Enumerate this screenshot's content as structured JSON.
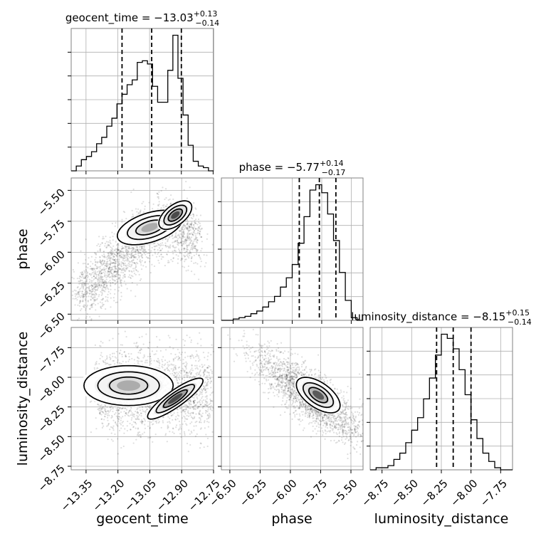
{
  "chart_data": [
    {
      "type": "histogram",
      "panel": "geocent_time marginal",
      "title": "geocent_time = −13.03",
      "title_sup": "+0.13",
      "title_sub": "−0.14",
      "quantiles": [
        -13.18,
        -13.04,
        -12.9
      ],
      "bin_edges": [
        -13.42,
        -13.396,
        -13.372,
        -13.348,
        -13.324,
        -13.3,
        -13.276,
        -13.252,
        -13.228,
        -13.204,
        -13.18,
        -13.156,
        -13.132,
        -13.108,
        -13.084,
        -13.06,
        -13.036,
        -13.012,
        -12.988,
        -12.964,
        -12.94,
        -12.916,
        -12.892,
        -12.868,
        -12.844,
        -12.82,
        -12.796,
        -12.772,
        -12.748
      ],
      "counts": [
        0,
        3,
        7,
        9,
        12,
        17,
        21,
        28,
        33,
        42,
        48,
        54,
        57,
        68,
        69,
        67,
        53,
        43,
        43,
        63,
        85,
        58,
        35,
        16,
        6,
        3,
        2,
        0
      ]
    },
    {
      "type": "histogram",
      "panel": "phase marginal",
      "title": "phase = −5.77",
      "title_sup": "+0.14",
      "title_sub": "−0.17",
      "quantiles": [
        -5.94,
        -5.77,
        -5.63
      ],
      "bin_edges": [
        -6.6,
        -6.55,
        -6.5,
        -6.45,
        -6.4,
        -6.35,
        -6.3,
        -6.25,
        -6.2,
        -6.15,
        -6.1,
        -6.05,
        -6.0,
        -5.95,
        -5.9,
        -5.85,
        -5.8,
        -5.75,
        -5.7,
        -5.65,
        -5.6,
        -5.55,
        -5.5,
        -5.45,
        -5.4
      ],
      "counts": [
        0,
        0,
        1,
        2,
        3,
        5,
        7,
        10,
        14,
        18,
        25,
        32,
        42,
        58,
        78,
        98,
        102,
        96,
        80,
        60,
        36,
        15,
        2,
        0
      ]
    },
    {
      "type": "histogram",
      "panel": "luminosity_distance marginal",
      "title": "luminosity_distance = −8.15",
      "title_sup": "+0.15",
      "title_sub": "−0.14",
      "quantiles": [
        -8.29,
        -8.15,
        -8.0
      ],
      "bin_edges": [
        -8.85,
        -8.8,
        -8.75,
        -8.7,
        -8.65,
        -8.6,
        -8.55,
        -8.5,
        -8.45,
        -8.4,
        -8.35,
        -8.3,
        -8.25,
        -8.2,
        -8.15,
        -8.1,
        -8.05,
        -8.0,
        -7.95,
        -7.9,
        -7.85,
        -7.8,
        -7.75,
        -7.7,
        -7.65
      ],
      "counts": [
        0,
        1,
        1,
        2,
        5,
        8,
        13,
        19,
        25,
        34,
        44,
        55,
        65,
        63,
        58,
        48,
        36,
        24,
        15,
        8,
        4,
        1,
        0,
        0
      ]
    },
    {
      "type": "contour",
      "panel": "geocent_time vs phase",
      "xlabel": "geocent_time",
      "ylabel": "phase",
      "xlim": [
        -13.42,
        -12.75
      ],
      "ylim": [
        -6.55,
        -5.4
      ],
      "mode_a": [
        -12.93,
        -5.7
      ],
      "mode_b": [
        -13.05,
        -5.75
      ]
    },
    {
      "type": "contour",
      "panel": "geocent_time vs luminosity_distance",
      "xlabel": "geocent_time",
      "ylabel": "luminosity_distance",
      "xlim": [
        -13.42,
        -12.75
      ],
      "ylim": [
        -8.78,
        -7.58
      ],
      "mode_a": [
        -12.93,
        -8.18
      ],
      "mode_b": [
        -13.15,
        -8.07
      ]
    },
    {
      "type": "contour",
      "panel": "phase vs luminosity_distance",
      "xlabel": "phase",
      "ylabel": "luminosity_distance",
      "xlim": [
        -6.57,
        -5.4
      ],
      "ylim": [
        -8.78,
        -7.58
      ],
      "mode_a": [
        -5.77,
        -8.15
      ]
    }
  ],
  "axes": {
    "x_tick_labels": {
      "geocent_time": [
        "−13.35",
        "−13.20",
        "−13.05",
        "−12.90",
        "−12.75"
      ],
      "phase": [
        "−6.50",
        "−6.25",
        "−6.00",
        "−5.75",
        "−5.50"
      ],
      "luminosity_distance": [
        "−8.75",
        "−8.50",
        "−8.25",
        "−8.00",
        "−7.75"
      ]
    },
    "y_tick_labels": {
      "phase": [
        "−5.50",
        "−5.75",
        "−6.00",
        "−6.25",
        "−6.50"
      ],
      "luminosity_distance": [
        "−7.75",
        "−8.00",
        "−8.25",
        "−8.50",
        "−8.75"
      ]
    },
    "x_tick_values": {
      "geocent_time": [
        -13.35,
        -13.2,
        -13.05,
        -12.9,
        -12.75
      ],
      "phase": [
        -6.5,
        -6.25,
        -6.0,
        -5.75,
        -5.5
      ],
      "luminosity_distance": [
        -8.75,
        -8.5,
        -8.25,
        -8.0,
        -7.75
      ]
    },
    "y_tick_values": {
      "phase": [
        -5.5,
        -5.75,
        -6.0,
        -6.25,
        -6.5
      ],
      "luminosity_distance": [
        -7.75,
        -8.0,
        -8.25,
        -8.5,
        -8.75
      ]
    },
    "labels": {
      "geocent_time": "geocent_time",
      "phase": "phase",
      "luminosity_distance": "luminosity_distance"
    }
  }
}
